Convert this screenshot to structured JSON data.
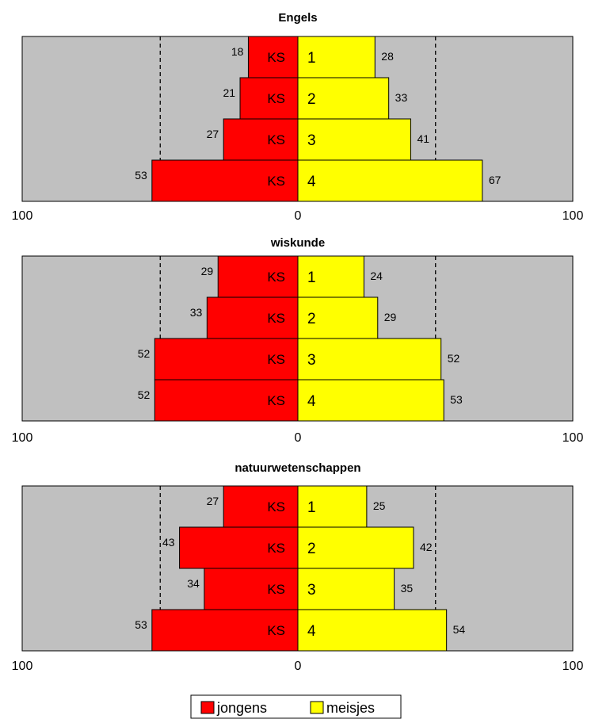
{
  "chart_data": [
    {
      "type": "bar",
      "orientation": "horizontal-diverging",
      "title": "Engels",
      "categories": [
        "1",
        "2",
        "3",
        "4"
      ],
      "left_label": "KS",
      "series": [
        {
          "name": "jongens",
          "color": "#ff0000",
          "side": "left",
          "values": [
            18,
            21,
            27,
            53
          ]
        },
        {
          "name": "meisjes",
          "color": "#ffff00",
          "side": "right",
          "values": [
            28,
            33,
            41,
            67
          ]
        }
      ],
      "xlim": [
        -100,
        100
      ],
      "xticks": [
        "100",
        "0",
        "100"
      ],
      "reference_lines": [
        -50,
        50
      ],
      "background": "#c0c0c0"
    },
    {
      "type": "bar",
      "orientation": "horizontal-diverging",
      "title": "wiskunde",
      "categories": [
        "1",
        "2",
        "3",
        "4"
      ],
      "left_label": "KS",
      "series": [
        {
          "name": "jongens",
          "color": "#ff0000",
          "side": "left",
          "values": [
            29,
            33,
            52,
            52
          ]
        },
        {
          "name": "meisjes",
          "color": "#ffff00",
          "side": "right",
          "values": [
            24,
            29,
            52,
            53
          ]
        }
      ],
      "xlim": [
        -100,
        100
      ],
      "xticks": [
        "100",
        "0",
        "100"
      ],
      "reference_lines": [
        -50,
        50
      ],
      "background": "#c0c0c0"
    },
    {
      "type": "bar",
      "orientation": "horizontal-diverging",
      "title": "natuurwetenschappen",
      "categories": [
        "1",
        "2",
        "3",
        "4"
      ],
      "left_label": "KS",
      "series": [
        {
          "name": "jongens",
          "color": "#ff0000",
          "side": "left",
          "values": [
            27,
            43,
            34,
            53
          ]
        },
        {
          "name": "meisjes",
          "color": "#ffff00",
          "side": "right",
          "values": [
            25,
            42,
            35,
            54
          ]
        }
      ],
      "xlim": [
        -100,
        100
      ],
      "xticks": [
        "100",
        "0",
        "100"
      ],
      "reference_lines": [
        -50,
        50
      ],
      "background": "#c0c0c0"
    }
  ],
  "legend": {
    "placement": "bottom-center",
    "items": [
      {
        "label": "jongens",
        "color": "#ff0000"
      },
      {
        "label": "meisjes",
        "color": "#ffff00"
      }
    ]
  }
}
